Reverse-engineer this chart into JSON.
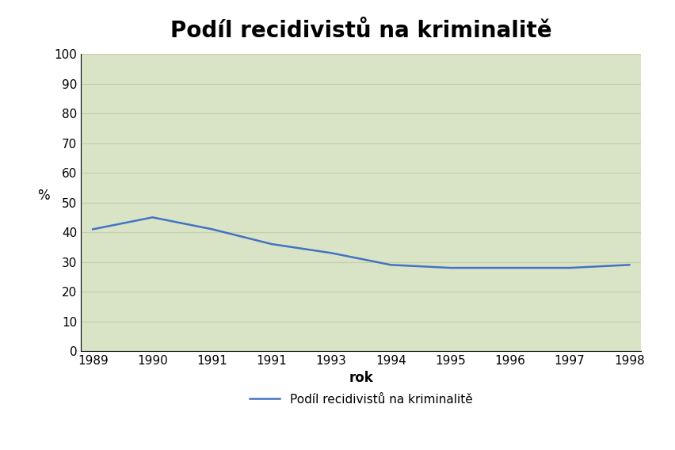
{
  "title": "Podíl recidivistů na kriminalitě",
  "xlabel": "rok",
  "ylabel": "%",
  "x_labels": [
    "1989",
    "1990",
    "1991",
    "1991",
    "1993",
    "1994",
    "1995",
    "1996",
    "1997",
    "1998"
  ],
  "x_values": [
    0,
    1,
    2,
    3,
    4,
    5,
    6,
    7,
    8,
    9
  ],
  "y_values": [
    41,
    45,
    41,
    36,
    33,
    29,
    28,
    28,
    28,
    29
  ],
  "ylim": [
    0,
    100
  ],
  "yticks": [
    0,
    10,
    20,
    30,
    40,
    50,
    60,
    70,
    80,
    90,
    100
  ],
  "line_color": "#4472C4",
  "plot_area_color": "#D9E4C7",
  "outer_bg_color": "#FFFFFF",
  "grid_color": "#C2D0A8",
  "legend_label": "Podíl recidivistů na kriminalitě",
  "title_fontsize": 20,
  "axis_label_fontsize": 12,
  "tick_fontsize": 11,
  "legend_fontsize": 11,
  "line_width": 1.8
}
